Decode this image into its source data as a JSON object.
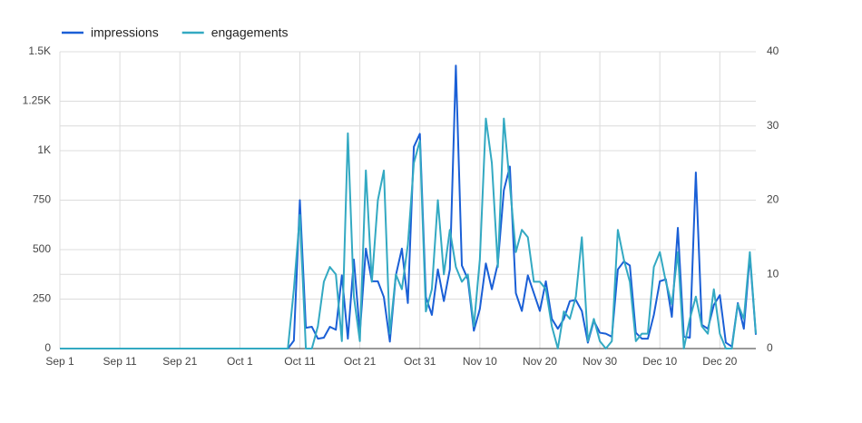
{
  "chart_data": {
    "type": "line",
    "x": [
      "Sep 1",
      "Sep 2",
      "Sep 3",
      "Sep 4",
      "Sep 5",
      "Sep 6",
      "Sep 7",
      "Sep 8",
      "Sep 9",
      "Sep 10",
      "Sep 11",
      "Sep 12",
      "Sep 13",
      "Sep 14",
      "Sep 15",
      "Sep 16",
      "Sep 17",
      "Sep 18",
      "Sep 19",
      "Sep 20",
      "Sep 21",
      "Sep 22",
      "Sep 23",
      "Sep 24",
      "Sep 25",
      "Sep 26",
      "Sep 27",
      "Sep 28",
      "Sep 29",
      "Sep 30",
      "Oct 1",
      "Oct 2",
      "Oct 3",
      "Oct 4",
      "Oct 5",
      "Oct 6",
      "Oct 7",
      "Oct 8",
      "Oct 9",
      "Oct 10",
      "Oct 11",
      "Oct 12",
      "Oct 13",
      "Oct 14",
      "Oct 15",
      "Oct 16",
      "Oct 17",
      "Oct 18",
      "Oct 19",
      "Oct 20",
      "Oct 21",
      "Oct 22",
      "Oct 23",
      "Oct 24",
      "Oct 25",
      "Oct 26",
      "Oct 27",
      "Oct 28",
      "Oct 29",
      "Oct 30",
      "Oct 31",
      "Nov 1",
      "Nov 2",
      "Nov 3",
      "Nov 4",
      "Nov 5",
      "Nov 6",
      "Nov 7",
      "Nov 8",
      "Nov 9",
      "Nov 10",
      "Nov 11",
      "Nov 12",
      "Nov 13",
      "Nov 14",
      "Nov 15",
      "Nov 16",
      "Nov 17",
      "Nov 18",
      "Nov 19",
      "Nov 20",
      "Nov 21",
      "Nov 22",
      "Nov 23",
      "Nov 24",
      "Nov 25",
      "Nov 26",
      "Nov 27",
      "Nov 28",
      "Nov 29",
      "Nov 30",
      "Dec 1",
      "Dec 2",
      "Dec 3",
      "Dec 4",
      "Dec 5",
      "Dec 6",
      "Dec 7",
      "Dec 8",
      "Dec 9",
      "Dec 10",
      "Dec 11",
      "Dec 12",
      "Dec 13",
      "Dec 14",
      "Dec 15",
      "Dec 16",
      "Dec 17",
      "Dec 18",
      "Dec 19",
      "Dec 20",
      "Dec 21",
      "Dec 22",
      "Dec 23",
      "Dec 24",
      "Dec 25",
      "Dec 26"
    ],
    "xticks": [
      "Sep 1",
      "Sep 11",
      "Sep 21",
      "Oct 1",
      "Oct 11",
      "Oct 21",
      "Oct 31",
      "Nov 10",
      "Nov 20",
      "Nov 30",
      "Dec 10",
      "Dec 20"
    ],
    "series": [
      {
        "name": "impressions",
        "color": "#1a5fd6",
        "values": [
          0,
          0,
          0,
          0,
          0,
          0,
          0,
          0,
          0,
          0,
          0,
          0,
          0,
          0,
          0,
          0,
          0,
          0,
          0,
          0,
          0,
          0,
          0,
          0,
          0,
          0,
          0,
          0,
          0,
          0,
          0,
          0,
          0,
          0,
          0,
          0,
          0,
          0,
          0,
          40,
          750,
          105,
          110,
          50,
          55,
          110,
          95,
          370,
          50,
          450,
          80,
          505,
          340,
          340,
          260,
          35,
          370,
          505,
          230,
          1020,
          1085,
          260,
          170,
          400,
          240,
          400,
          1430,
          420,
          350,
          90,
          200,
          430,
          300,
          430,
          800,
          920,
          280,
          190,
          370,
          280,
          190,
          340,
          150,
          100,
          150,
          240,
          245,
          190,
          30,
          140,
          80,
          75,
          60,
          400,
          440,
          420,
          80,
          50,
          50,
          170,
          340,
          350,
          160,
          610,
          60,
          55,
          890,
          120,
          100,
          220,
          270,
          30,
          10,
          230,
          100,
          470,
          70
        ]
      },
      {
        "name": "engagements",
        "color": "#33a9c2",
        "axis": "y2",
        "values": [
          0,
          0,
          0,
          0,
          0,
          0,
          0,
          0,
          0,
          0,
          0,
          0,
          0,
          0,
          0,
          0,
          0,
          0,
          0,
          0,
          0,
          0,
          0,
          0,
          0,
          0,
          0,
          0,
          0,
          0,
          0,
          0,
          0,
          0,
          0,
          0,
          0,
          0,
          0,
          8,
          18,
          0,
          0,
          3,
          9,
          11,
          10,
          1,
          29,
          7,
          1,
          24,
          9,
          20,
          24,
          2,
          10,
          8,
          14,
          25,
          28,
          5,
          8,
          20,
          10,
          16,
          11,
          9,
          10,
          3,
          12,
          31,
          25,
          11,
          31,
          22,
          13,
          16,
          15,
          9,
          9,
          8,
          3,
          0,
          5,
          4,
          7,
          15,
          1,
          4,
          1,
          0,
          1,
          16,
          12,
          9,
          1,
          2,
          2,
          11,
          13,
          9,
          6,
          13,
          0,
          4,
          7,
          3,
          2,
          8,
          2,
          0,
          0,
          6,
          4,
          13,
          2
        ]
      }
    ],
    "ylim": [
      0,
      1500
    ],
    "yticks": [
      0,
      250,
      500,
      750,
      {
        "value": 1000,
        "label": "1K"
      },
      {
        "value": 1250,
        "label": "1.25K"
      },
      {
        "value": 1500,
        "label": "1.5K"
      }
    ],
    "y2lim": [
      0,
      40
    ],
    "y2ticks": [
      0,
      10,
      20,
      30,
      40
    ],
    "grid": true,
    "legend": "top-left"
  }
}
